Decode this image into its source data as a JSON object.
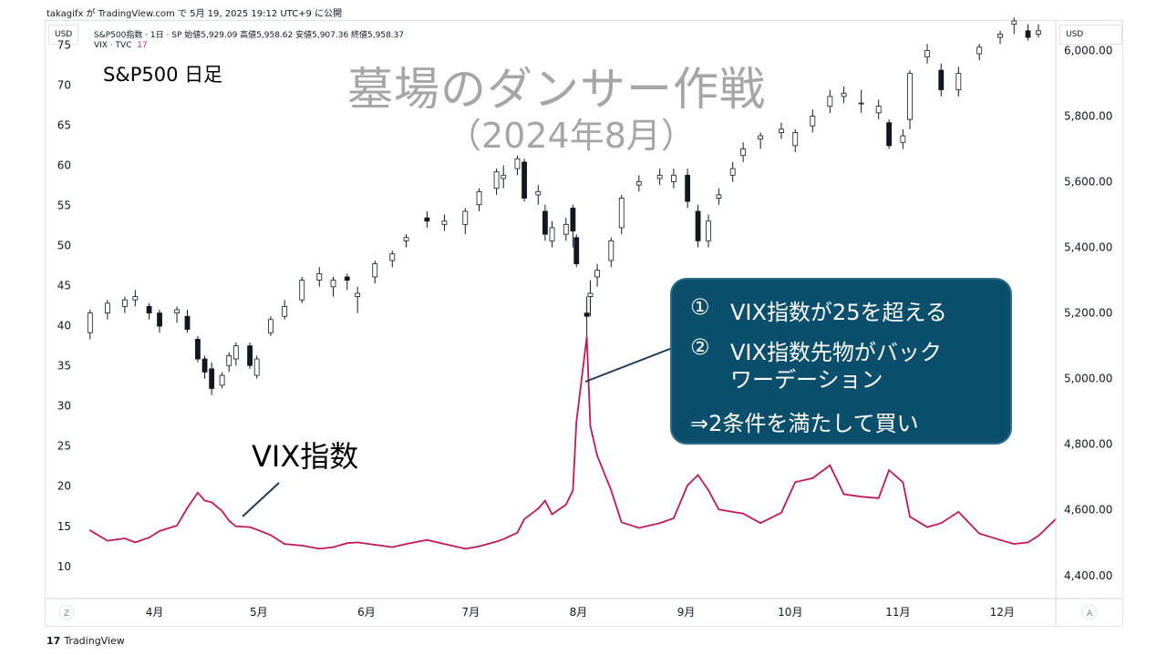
{
  "attribution": "takagifx が TradingView.com で 5月 19, 2025 19:12 UTC+9 に公開",
  "left_unit": "USD",
  "right_unit": "USD",
  "symbol_line": "S&P500指数 · 1日 · SP  始値5,929.09  高値5,958.62  安値5,907.36  終値5,958.37",
  "vix_line_label": "VIX · TVC",
  "vix_line_value": "17",
  "subtitle": "S&P500  日足",
  "title": "墓場のダンサー作戦",
  "title_sub": "（2024年8月）",
  "vix_annotation": "VIX指数",
  "callout": {
    "line1_num": "①",
    "line1": "VIX指数が25を超える",
    "line2_num": "②",
    "line2": "VIX指数先物がバック",
    "line2b": "ワーデーション",
    "line3": "⇒2条件を満たして買い"
  },
  "footer_logo": "TradingView",
  "corner_left": "Z",
  "corner_right": "A",
  "colors": {
    "vix": "#c2185b",
    "candle_up": "#ffffff",
    "candle_down": "#131722",
    "callout_bg": "#0b4f6c",
    "title": "#a6a6a6"
  },
  "chart_data": {
    "type": "line",
    "x_tick_labels": [
      "4月",
      "5月",
      "6月",
      "7月",
      "8月",
      "9月",
      "10月",
      "11月",
      "12月"
    ],
    "left_axis": {
      "ticks": [
        10,
        15,
        20,
        25,
        30,
        35,
        40,
        45,
        50,
        55,
        60,
        65,
        70,
        75
      ],
      "range": [
        6,
        78
      ]
    },
    "right_axis": {
      "ticks": [
        "4,400.00",
        "4,600.00",
        "4,800.00",
        "5,000.00",
        "5,200.00",
        "5,400.00",
        "5,600.00",
        "5,800.00",
        "6,000.00"
      ],
      "range": [
        4330,
        6090
      ]
    },
    "series": [
      {
        "type": "candlestick",
        "x": [
          "2024-03-15",
          "2024-03-20",
          "2024-03-25",
          "2024-03-28",
          "2024-04-01",
          "2024-04-04",
          "2024-04-09",
          "2024-04-12",
          "2024-04-15",
          "2024-04-17",
          "2024-04-19",
          "2024-04-22",
          "2024-04-24",
          "2024-04-26",
          "2024-04-30",
          "2024-05-02",
          "2024-05-06",
          "2024-05-10",
          "2024-05-15",
          "2024-05-20",
          "2024-05-24",
          "2024-05-28",
          "2024-05-31",
          "2024-06-05",
          "2024-06-10",
          "2024-06-14",
          "2024-06-20",
          "2024-06-25",
          "2024-07-01",
          "2024-07-05",
          "2024-07-10",
          "2024-07-12",
          "2024-07-16",
          "2024-07-18",
          "2024-07-22",
          "2024-07-24",
          "2024-07-26",
          "2024-07-30",
          "2024-08-01",
          "2024-08-02",
          "2024-08-05",
          "2024-08-06",
          "2024-08-08",
          "2024-08-12",
          "2024-08-15",
          "2024-08-20",
          "2024-08-26",
          "2024-08-30",
          "2024-09-03",
          "2024-09-06",
          "2024-09-09",
          "2024-09-12",
          "2024-09-16",
          "2024-09-19",
          "2024-09-24",
          "2024-09-30",
          "2024-10-04",
          "2024-10-09",
          "2024-10-14",
          "2024-10-18",
          "2024-10-23",
          "2024-10-28",
          "2024-10-31",
          "2024-11-04",
          "2024-11-06",
          "2024-11-11",
          "2024-11-15",
          "2024-11-20",
          "2024-11-26",
          "2024-12-02",
          "2024-12-06",
          "2024-12-10",
          "2024-12-13"
        ],
        "open": [
          5140,
          5200,
          5220,
          5240,
          5220,
          5200,
          5200,
          5190,
          5120,
          5060,
          5030,
          4980,
          5040,
          5060,
          5100,
          5010,
          5140,
          5190,
          5240,
          5300,
          5280,
          5310,
          5250,
          5310,
          5360,
          5420,
          5490,
          5470,
          5470,
          5530,
          5580,
          5610,
          5640,
          5660,
          5560,
          5510,
          5420,
          5440,
          5520,
          5430,
          5200,
          5250,
          5310,
          5360,
          5460,
          5590,
          5610,
          5600,
          5620,
          5510,
          5420,
          5550,
          5620,
          5680,
          5730,
          5750,
          5710,
          5770,
          5830,
          5860,
          5840,
          5810,
          5780,
          5720,
          5790,
          5980,
          5940,
          5880,
          5990,
          6040,
          6080,
          6060,
          6050
        ],
        "close": [
          5200,
          5230,
          5240,
          5250,
          5200,
          5160,
          5210,
          5150,
          5060,
          5020,
          4970,
          5010,
          5070,
          5100,
          5040,
          5060,
          5180,
          5220,
          5300,
          5320,
          5300,
          5300,
          5260,
          5350,
          5380,
          5430,
          5480,
          5480,
          5510,
          5570,
          5630,
          5620,
          5670,
          5550,
          5570,
          5440,
          5460,
          5470,
          5450,
          5350,
          5190,
          5260,
          5330,
          5420,
          5550,
          5600,
          5620,
          5620,
          5540,
          5420,
          5480,
          5560,
          5640,
          5700,
          5740,
          5760,
          5750,
          5800,
          5860,
          5870,
          5840,
          5830,
          5710,
          5740,
          5930,
          6000,
          5880,
          5930,
          6010,
          6050,
          6090,
          6040,
          6060
        ],
        "high": [
          5210,
          5240,
          5250,
          5270,
          5230,
          5210,
          5220,
          5210,
          5130,
          5070,
          5050,
          5020,
          5080,
          5110,
          5110,
          5070,
          5190,
          5240,
          5310,
          5340,
          5310,
          5320,
          5280,
          5360,
          5390,
          5440,
          5510,
          5500,
          5520,
          5580,
          5640,
          5650,
          5680,
          5670,
          5590,
          5530,
          5480,
          5490,
          5530,
          5440,
          5250,
          5300,
          5350,
          5430,
          5560,
          5620,
          5640,
          5640,
          5640,
          5530,
          5500,
          5580,
          5660,
          5720,
          5750,
          5780,
          5760,
          5820,
          5880,
          5890,
          5880,
          5850,
          5790,
          5760,
          5940,
          6020,
          5960,
          5950,
          6020,
          6060,
          6100,
          6080,
          6080
        ],
        "low": [
          5120,
          5180,
          5200,
          5220,
          5180,
          5140,
          5170,
          5140,
          5050,
          5000,
          4950,
          4970,
          5020,
          5040,
          5030,
          5000,
          5130,
          5180,
          5230,
          5280,
          5250,
          5270,
          5200,
          5290,
          5340,
          5400,
          5460,
          5450,
          5440,
          5510,
          5560,
          5580,
          5620,
          5540,
          5530,
          5420,
          5400,
          5420,
          5400,
          5340,
          5100,
          5190,
          5280,
          5340,
          5440,
          5570,
          5590,
          5580,
          5520,
          5400,
          5400,
          5530,
          5600,
          5660,
          5700,
          5730,
          5690,
          5750,
          5810,
          5840,
          5810,
          5790,
          5700,
          5700,
          5760,
          5960,
          5860,
          5860,
          5970,
          6020,
          6050,
          6030,
          6040
        ]
      },
      {
        "name": "VIX",
        "axis": "left",
        "x": [
          "2024-03-15",
          "2024-03-20",
          "2024-03-25",
          "2024-03-28",
          "2024-04-01",
          "2024-04-04",
          "2024-04-09",
          "2024-04-12",
          "2024-04-15",
          "2024-04-17",
          "2024-04-19",
          "2024-04-22",
          "2024-04-24",
          "2024-04-26",
          "2024-04-30",
          "2024-05-02",
          "2024-05-06",
          "2024-05-10",
          "2024-05-15",
          "2024-05-20",
          "2024-05-24",
          "2024-05-28",
          "2024-05-31",
          "2024-06-05",
          "2024-06-10",
          "2024-06-14",
          "2024-06-20",
          "2024-06-25",
          "2024-07-01",
          "2024-07-05",
          "2024-07-10",
          "2024-07-12",
          "2024-07-16",
          "2024-07-18",
          "2024-07-22",
          "2024-07-24",
          "2024-07-26",
          "2024-07-30",
          "2024-08-01",
          "2024-08-02",
          "2024-08-05",
          "2024-08-06",
          "2024-08-08",
          "2024-08-12",
          "2024-08-15",
          "2024-08-20",
          "2024-08-26",
          "2024-08-30",
          "2024-09-03",
          "2024-09-06",
          "2024-09-09",
          "2024-09-12",
          "2024-09-16",
          "2024-09-19",
          "2024-09-24",
          "2024-09-30",
          "2024-10-04",
          "2024-10-09",
          "2024-10-14",
          "2024-10-18",
          "2024-10-23",
          "2024-10-28",
          "2024-10-31",
          "2024-11-04",
          "2024-11-06",
          "2024-11-11",
          "2024-11-15",
          "2024-11-20",
          "2024-11-26",
          "2024-12-02",
          "2024-12-06",
          "2024-12-10",
          "2024-12-13",
          "2024-12-18"
        ],
        "values": [
          14.5,
          13.2,
          13.5,
          13.0,
          13.6,
          14.4,
          15.1,
          17.3,
          19.2,
          18.2,
          18.0,
          16.9,
          15.7,
          15.0,
          14.9,
          14.6,
          13.9,
          12.8,
          12.6,
          12.2,
          12.4,
          12.9,
          13.0,
          12.7,
          12.4,
          12.8,
          13.3,
          12.8,
          12.2,
          12.5,
          13.1,
          13.4,
          14.2,
          15.9,
          17.2,
          18.2,
          16.5,
          17.7,
          19.5,
          28.0,
          38.6,
          27.5,
          23.8,
          19.5,
          15.5,
          14.8,
          15.4,
          16.0,
          20.1,
          21.4,
          19.5,
          17.1,
          16.8,
          16.6,
          15.4,
          16.7,
          20.5,
          21.0,
          22.6,
          19.0,
          18.7,
          18.5,
          22.0,
          20.5,
          16.2,
          14.9,
          15.4,
          16.8,
          14.1,
          13.3,
          12.8,
          13.0,
          13.8,
          15.9
        ]
      }
    ]
  }
}
